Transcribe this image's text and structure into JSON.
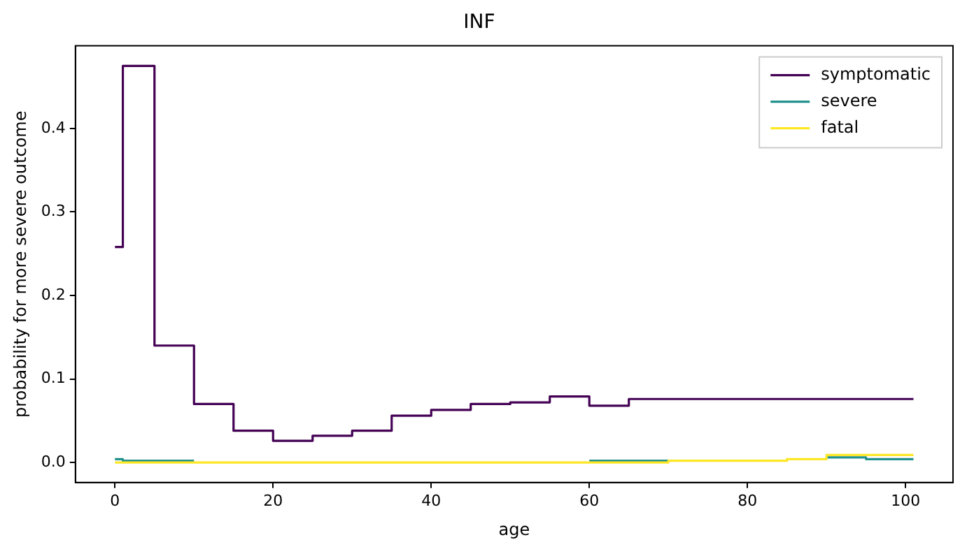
{
  "chart_data": {
    "type": "step",
    "title": "INF",
    "xlabel": "age",
    "ylabel": "probability for more severe outcome",
    "x": [
      0,
      1,
      5,
      10,
      15,
      20,
      25,
      30,
      35,
      40,
      45,
      50,
      55,
      60,
      65,
      70,
      75,
      80,
      85,
      90,
      95,
      100,
      101
    ],
    "series": [
      {
        "name": "symptomatic",
        "color": "#440154",
        "values": [
          0.258,
          0.475,
          0.14,
          0.07,
          0.038,
          0.026,
          0.032,
          0.038,
          0.056,
          0.063,
          0.07,
          0.072,
          0.079,
          0.068,
          0.076,
          0.076,
          0.076,
          0.076,
          0.076,
          0.076,
          0.076,
          0.076,
          0.076
        ]
      },
      {
        "name": "severe",
        "color": "#21918c",
        "values": [
          0.004,
          0.002,
          0.002,
          null,
          null,
          null,
          null,
          null,
          null,
          null,
          null,
          null,
          null,
          0.002,
          0.002,
          null,
          null,
          null,
          null,
          0.006,
          0.004,
          0.004,
          0.004
        ]
      },
      {
        "name": "fatal",
        "color": "#fde725",
        "values": [
          0,
          0,
          0,
          0,
          0,
          0,
          0,
          0,
          0,
          0,
          0,
          0,
          0,
          0,
          0,
          0.002,
          0.002,
          0.002,
          0.004,
          0.009,
          0.009,
          0.009,
          0.009
        ]
      }
    ],
    "xlim": [
      -5,
      106
    ],
    "xticks": [
      0,
      20,
      40,
      60,
      80,
      100
    ],
    "ylim": [
      -0.024,
      0.499
    ],
    "yticks": [
      {
        "value": 0,
        "label": "0.0"
      },
      {
        "value": 0.1,
        "label": "0.1"
      },
      {
        "value": 0.2,
        "label": "0.2"
      },
      {
        "value": 0.3,
        "label": "0.3"
      },
      {
        "value": 0.4,
        "label": "0.4"
      }
    ],
    "grid": false,
    "legend": "top right",
    "marker": "none",
    "line_style": "solid"
  }
}
